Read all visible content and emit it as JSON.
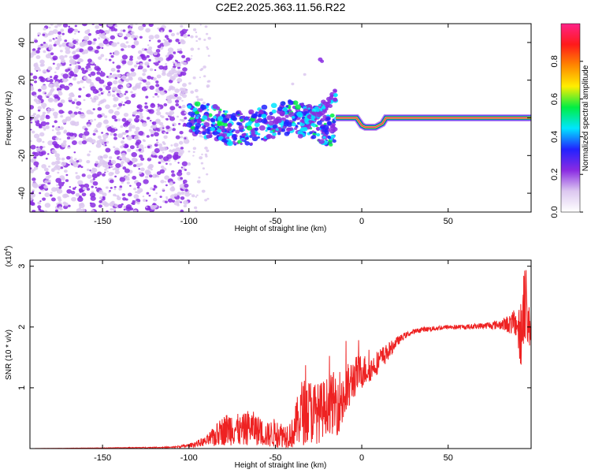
{
  "chart_data": [
    {
      "type": "heatmap",
      "title": "C2E2.2025.363.11.56.R22",
      "xlabel": "Height of straight line (km)",
      "ylabel": "Frequency (Hz)",
      "xlim": [
        -192,
        98
      ],
      "ylim": [
        -50,
        50
      ],
      "x_ticks": [
        -150,
        -100,
        -50,
        0,
        50
      ],
      "y_ticks": [
        -40,
        -20,
        0,
        20,
        40
      ],
      "colorbar": {
        "label": "Normalized spectral amplitude",
        "range": [
          0,
          1
        ],
        "ticks": [
          0.0,
          0.2,
          0.4,
          0.6,
          0.8
        ],
        "colors": [
          "#ffffff",
          "#dcc8f0",
          "#8a2be2",
          "#2222ff",
          "#00e5ff",
          "#00ee44",
          "#ffee00",
          "#ff8800",
          "#ff1a1a",
          "#ff2288"
        ]
      },
      "regions": [
        {
          "name": "noise",
          "x": [
            -192,
            -100
          ],
          "y": [
            -50,
            50
          ],
          "amplitude": 0.15
        },
        {
          "name": "wandering",
          "x": [
            -100,
            -15
          ],
          "y": [
            -15,
            10
          ],
          "amplitude": 0.35
        },
        {
          "name": "rising branch",
          "x": [
            -35,
            -15
          ],
          "y": [
            -5,
            12
          ],
          "amplitude": 0.3
        },
        {
          "name": "tone",
          "x": [
            -15,
            98
          ],
          "y": [
            0,
            0
          ],
          "amplitude": 0.98
        }
      ],
      "tone_profile": {
        "x": [
          -15,
          -3,
          0,
          2,
          8,
          12,
          14,
          98
        ],
        "y": [
          0,
          0,
          -4,
          -5,
          -5,
          -3,
          0,
          0
        ]
      }
    },
    {
      "type": "line",
      "xlabel": "Height of straight line (km)",
      "ylabel": "SNR (10 * v/v)",
      "y_multiplier": "(x10",
      "y_multiplier_exp": "4",
      "y_multiplier_close": ")",
      "xlim": [
        -192,
        98
      ],
      "ylim": [
        0,
        3.1
      ],
      "x_ticks": [
        -150,
        -100,
        -50,
        0,
        50
      ],
      "y_ticks": [
        1,
        2,
        3
      ],
      "color": "#ee2222",
      "x": [
        -192,
        -150,
        -110,
        -100,
        -90,
        -85,
        -80,
        -75,
        -70,
        -65,
        -60,
        -55,
        -50,
        -45,
        -40,
        -35,
        -30,
        -25,
        -20,
        -15,
        -10,
        -5,
        0,
        5,
        10,
        15,
        20,
        25,
        30,
        35,
        40,
        50,
        60,
        70,
        80,
        85,
        90,
        92,
        94,
        96,
        98
      ],
      "y": [
        0.0,
        0.01,
        0.02,
        0.05,
        0.12,
        0.2,
        0.3,
        0.35,
        0.28,
        0.36,
        0.3,
        0.22,
        0.26,
        0.22,
        0.25,
        0.6,
        0.62,
        0.58,
        0.72,
        0.75,
        0.85,
        1.15,
        1.28,
        1.3,
        1.45,
        1.58,
        1.75,
        1.86,
        1.92,
        1.96,
        1.97,
        2.0,
        2.0,
        2.02,
        2.04,
        2.05,
        2.05,
        1.7,
        2.6,
        2.0,
        2.0
      ],
      "noise_amplitude": [
        0,
        0.003,
        0.01,
        0.03,
        0.08,
        0.18,
        0.25,
        0.3,
        0.25,
        0.3,
        0.25,
        0.2,
        0.25,
        0.2,
        0.25,
        0.55,
        0.55,
        0.5,
        0.45,
        0.55,
        0.5,
        0.35,
        0.3,
        0.2,
        0.2,
        0.15,
        0.08,
        0.05,
        0.04,
        0.04,
        0.04,
        0.04,
        0.04,
        0.05,
        0.08,
        0.15,
        0.25,
        0.6,
        0.8,
        0.4,
        0.3
      ]
    }
  ]
}
